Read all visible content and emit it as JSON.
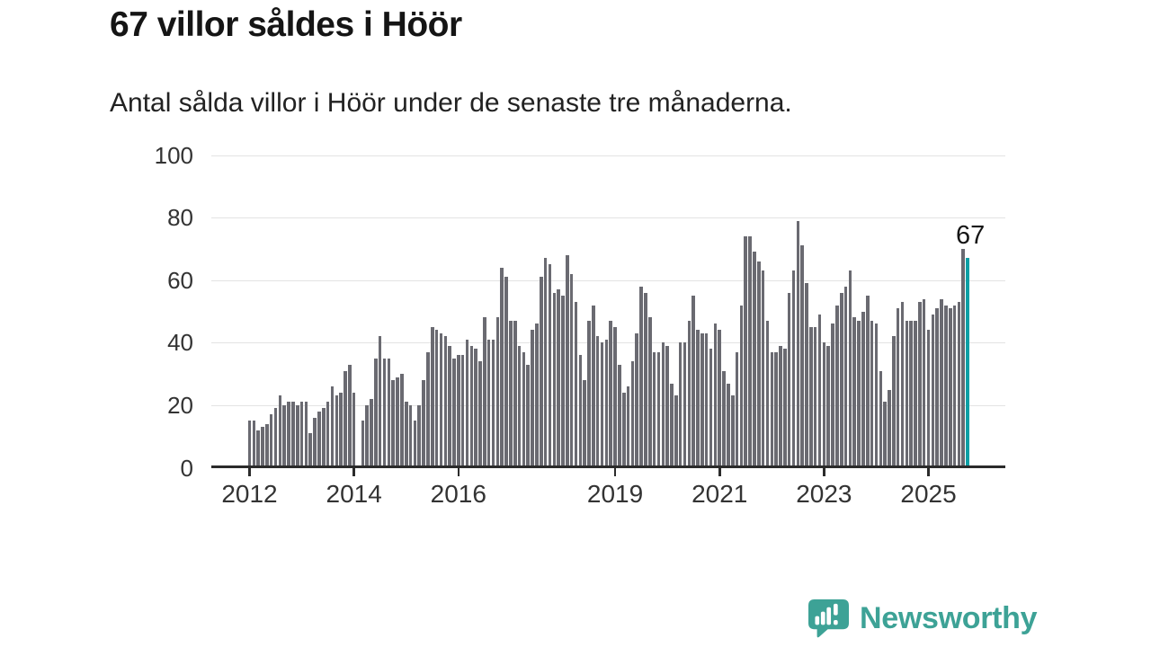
{
  "header": {
    "title": "67 villor såldes i Höör",
    "subtitle": "Antal sålda villor i Höör under de senaste tre månaderna."
  },
  "chart_data": {
    "type": "bar",
    "title": "67 villor såldes i Höör",
    "subtitle": "Antal sålda villor i Höör under de senaste tre månaderna.",
    "xlabel": "",
    "ylabel": "",
    "x_start": "2012-01",
    "frequency": "monthly",
    "ylim": [
      0,
      100
    ],
    "y_ticks": [
      0,
      20,
      40,
      60,
      80,
      100
    ],
    "grid": "horizontal",
    "legend": "none",
    "bar_color": "#6a6a71",
    "values": [
      15,
      15,
      12,
      13,
      14,
      17,
      19,
      23,
      20,
      21,
      21,
      20,
      21,
      21,
      11,
      16,
      18,
      19,
      21,
      26,
      23,
      24,
      31,
      33,
      24,
      0,
      15,
      20,
      22,
      35,
      42,
      35,
      35,
      28,
      29,
      30,
      21,
      20,
      15,
      20,
      28,
      37,
      45,
      44,
      43,
      42,
      39,
      35,
      36,
      36,
      41,
      39,
      38,
      34,
      48,
      41,
      41,
      48,
      64,
      61,
      47,
      47,
      39,
      37,
      33,
      44,
      46,
      61,
      67,
      65,
      56,
      57,
      55,
      68,
      62,
      53,
      36,
      28,
      47,
      52,
      42,
      40,
      41,
      47,
      45,
      33,
      24,
      26,
      34,
      43,
      58,
      56,
      48,
      37,
      37,
      40,
      39,
      27,
      23,
      40,
      40,
      47,
      55,
      44,
      43,
      43,
      38,
      46,
      44,
      31,
      27,
      23,
      37,
      52,
      74,
      74,
      69,
      66,
      63,
      47,
      37,
      37,
      39,
      38,
      56,
      63,
      79,
      71,
      59,
      45,
      45,
      49,
      40,
      39,
      46,
      52,
      56,
      58,
      63,
      48,
      47,
      50,
      55,
      47,
      46,
      31,
      21,
      25,
      42,
      51,
      53,
      47,
      47,
      47,
      53,
      54,
      44,
      49,
      51,
      54,
      52,
      51,
      52,
      53,
      70,
      67
    ],
    "x_ticks": [
      {
        "label": "2012",
        "month_index": 0
      },
      {
        "label": "2014",
        "month_index": 24
      },
      {
        "label": "2016",
        "month_index": 48
      },
      {
        "label": "2019",
        "month_index": 84
      },
      {
        "label": "2021",
        "month_index": 108
      },
      {
        "label": "2023",
        "month_index": 132
      },
      {
        "label": "2025",
        "month_index": 156
      }
    ],
    "highlight": {
      "index": 165,
      "value": 67,
      "label": "67",
      "color": "#0b9fa5"
    }
  },
  "annotation": {
    "label": "67"
  },
  "logo": {
    "text": "Newsworthy",
    "icon": "newsworthy-chart-bubble-icon",
    "color": "#3da296"
  },
  "colors": {
    "bar": "#6a6a71",
    "highlight": "#0b9fa5",
    "gridline": "#e3e3e3",
    "axis": "#2b2b2b",
    "text": "#151515",
    "logo_teal": "#3da296",
    "background": "#ffffff"
  }
}
